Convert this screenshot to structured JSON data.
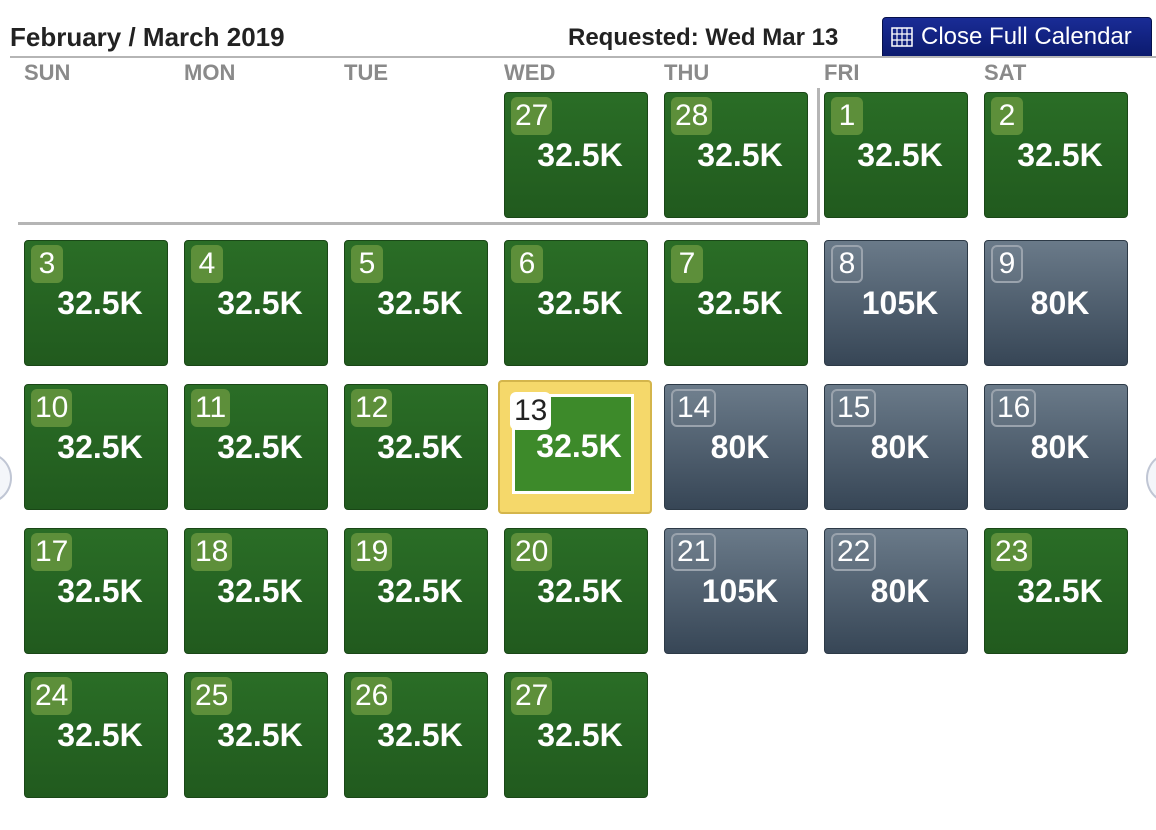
{
  "header": {
    "title": "February / March 2019",
    "requested": "Requested: Wed Mar 13",
    "close_button": "Close Full Calendar"
  },
  "weekdays": [
    "SUN",
    "MON",
    "TUE",
    "WED",
    "THU",
    "FRI",
    "SAT"
  ],
  "colors": {
    "available": "#2a6d26",
    "unavailable": "#4a5a6a",
    "selected": "#f5d86a",
    "button": "#0b1a6e"
  },
  "weeks": [
    [
      null,
      null,
      null,
      {
        "day": "27",
        "value": "32.5K",
        "status": "green"
      },
      {
        "day": "28",
        "value": "32.5K",
        "status": "green"
      },
      {
        "day": "1",
        "value": "32.5K",
        "status": "green"
      },
      {
        "day": "2",
        "value": "32.5K",
        "status": "green"
      }
    ],
    [
      {
        "day": "3",
        "value": "32.5K",
        "status": "green"
      },
      {
        "day": "4",
        "value": "32.5K",
        "status": "green"
      },
      {
        "day": "5",
        "value": "32.5K",
        "status": "green"
      },
      {
        "day": "6",
        "value": "32.5K",
        "status": "green"
      },
      {
        "day": "7",
        "value": "32.5K",
        "status": "green"
      },
      {
        "day": "8",
        "value": "105K",
        "status": "grey"
      },
      {
        "day": "9",
        "value": "80K",
        "status": "grey"
      }
    ],
    [
      {
        "day": "10",
        "value": "32.5K",
        "status": "green"
      },
      {
        "day": "11",
        "value": "32.5K",
        "status": "green"
      },
      {
        "day": "12",
        "value": "32.5K",
        "status": "green"
      },
      {
        "day": "13",
        "value": "32.5K",
        "status": "selected"
      },
      {
        "day": "14",
        "value": "80K",
        "status": "grey"
      },
      {
        "day": "15",
        "value": "80K",
        "status": "grey"
      },
      {
        "day": "16",
        "value": "80K",
        "status": "grey"
      }
    ],
    [
      {
        "day": "17",
        "value": "32.5K",
        "status": "green"
      },
      {
        "day": "18",
        "value": "32.5K",
        "status": "green"
      },
      {
        "day": "19",
        "value": "32.5K",
        "status": "green"
      },
      {
        "day": "20",
        "value": "32.5K",
        "status": "green"
      },
      {
        "day": "21",
        "value": "105K",
        "status": "grey"
      },
      {
        "day": "22",
        "value": "80K",
        "status": "grey"
      },
      {
        "day": "23",
        "value": "32.5K",
        "status": "green"
      }
    ],
    [
      {
        "day": "24",
        "value": "32.5K",
        "status": "green"
      },
      {
        "day": "25",
        "value": "32.5K",
        "status": "green"
      },
      {
        "day": "26",
        "value": "32.5K",
        "status": "green"
      },
      {
        "day": "27",
        "value": "32.5K",
        "status": "green"
      },
      null,
      null,
      null
    ]
  ]
}
